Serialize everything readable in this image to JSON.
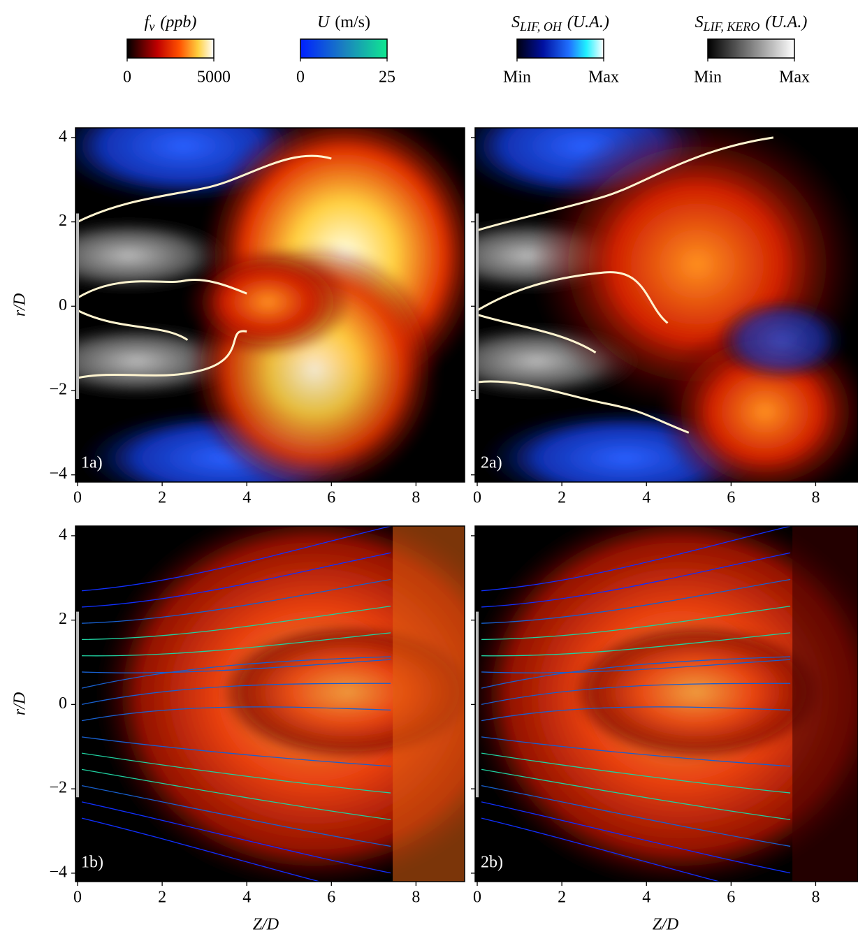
{
  "colorbars": [
    {
      "symbol": "f",
      "subscript": "v",
      "unit": "(ppb)",
      "lim": [
        0,
        5000
      ],
      "ticks": [
        0,
        5000
      ]
    },
    {
      "symbol": "U",
      "unit": "(m/s)",
      "lim": [
        0,
        25
      ],
      "ticks": [
        0,
        25
      ]
    },
    {
      "symbol": "S",
      "subscript": "LIF, OH",
      "unit": "(U.A.)",
      "ticks": [
        "Min",
        "Max"
      ]
    },
    {
      "symbol": "S",
      "subscript": "LIF, KERO",
      "unit": "(U.A.)",
      "ticks": [
        "Min",
        "Max"
      ]
    }
  ],
  "chart_data": [
    {
      "type": "heatmap",
      "panel_label": "1a)",
      "ylabel": "r/D",
      "xlim": [
        -0.05,
        9.15
      ],
      "ylim": [
        -4.17,
        4.23
      ],
      "xticks": [
        0,
        2,
        4,
        6,
        8
      ],
      "yticks": [
        {
          "value": -4,
          "label": "−4"
        },
        {
          "value": -2,
          "label": "−2"
        },
        0,
        2,
        4
      ]
    },
    {
      "type": "heatmap",
      "panel_label": "2a)",
      "xlim": [
        -0.05,
        9.0
      ],
      "ylim": [
        -4.17,
        4.23
      ],
      "xticks": [
        0,
        2,
        4,
        6,
        8
      ],
      "yticks": [
        -4,
        -2,
        0,
        2,
        4
      ]
    },
    {
      "type": "heatmap",
      "panel_label": "1b)",
      "ylabel": "r/D",
      "xlabel": "Z/D",
      "xlim": [
        -0.05,
        9.15
      ],
      "ylim": [
        -4.2,
        4.23
      ],
      "xticks": [
        0,
        2,
        4,
        6,
        8
      ],
      "yticks": [
        {
          "value": -4,
          "label": "−4"
        },
        {
          "value": -2,
          "label": "−2"
        },
        0,
        2,
        4
      ]
    },
    {
      "type": "heatmap",
      "panel_label": "2b)",
      "xlabel": "Z/D",
      "xlim": [
        -0.05,
        9.0
      ],
      "ylim": [
        -4.2,
        4.23
      ],
      "xticks": [
        0,
        2,
        4,
        6,
        8
      ],
      "yticks": [
        -4,
        -2,
        0,
        2,
        4
      ]
    }
  ]
}
